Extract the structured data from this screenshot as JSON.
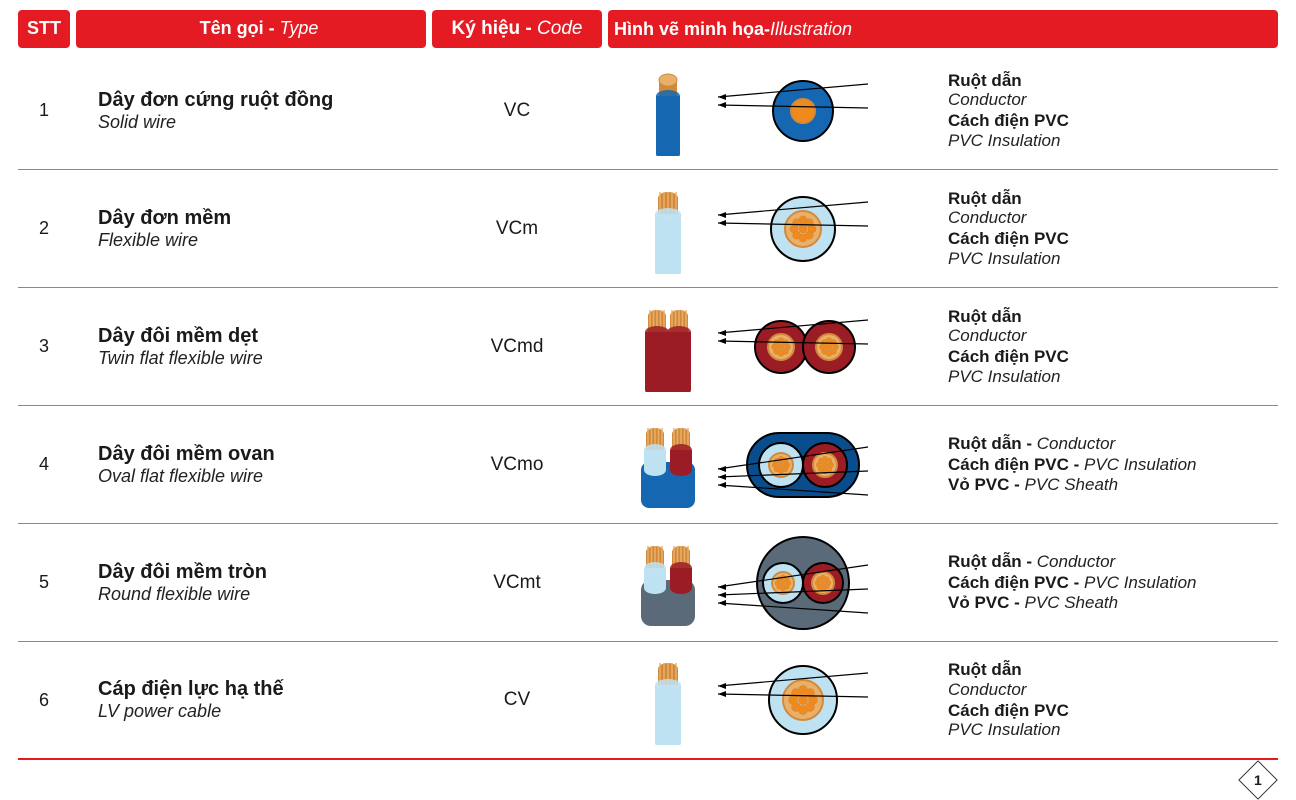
{
  "colors": {
    "header_bg": "#e41b23",
    "row_border": "#808080",
    "footer_border": "#e41b23",
    "text": "#1a1a1a",
    "copper": "#d28a3a",
    "copper_light": "#e8b06a",
    "blue": "#1667b2",
    "lightblue": "#bfe2f2",
    "red_ins": "#9c1c26",
    "maroon": "#6e2a2a",
    "darkblue_sheath": "#0a4d8c",
    "gray_sheath": "#5a6a78",
    "orange_dot": "#f08a1d",
    "black": "#000000",
    "white": "#ffffff"
  },
  "headers": {
    "stt": "STT",
    "type_vn": "Tên gọi",
    "type_en": "Type",
    "code_vn": "Ký hiệu",
    "code_en": "Code",
    "illus_vn": "Hình vẽ minh họa",
    "illus_en": "Illustration"
  },
  "label_text": {
    "conductor_vn": "Ruột dẫn",
    "conductor_en": "Conductor",
    "pvc_ins_vn": "Cách điện PVC",
    "pvc_ins_en": "PVC Insulation",
    "sheath_vn": "Vỏ PVC",
    "sheath_en": "PVC Sheath"
  },
  "rows": [
    {
      "n": "1",
      "name_vn": "Dây đơn cứng ruột đồng",
      "name_en": "Solid wire",
      "code": "VC",
      "wire_style": "single_solid_blue",
      "cross_style": "single_blue_solid",
      "labels": [
        "conductor",
        "pvc_ins"
      ]
    },
    {
      "n": "2",
      "name_vn": "Dây đơn mềm",
      "name_en": "Flexible wire",
      "code": "VCm",
      "wire_style": "single_strand_lightblue",
      "cross_style": "single_light_strand",
      "labels": [
        "conductor",
        "pvc_ins"
      ]
    },
    {
      "n": "3",
      "name_vn": "Dây đôi mềm dẹt",
      "name_en": "Twin flat flexible wire",
      "code": "VCmd",
      "wire_style": "twin_flat_red",
      "cross_style": "twin_red",
      "labels": [
        "conductor",
        "pvc_ins"
      ]
    },
    {
      "n": "4",
      "name_vn": "Dây đôi mềm ovan",
      "name_en": "Oval flat flexible wire",
      "code": "VCmo",
      "wire_style": "twin_oval_blue",
      "cross_style": "oval_blue",
      "labels": [
        "conductor",
        "pvc_ins",
        "sheath"
      ],
      "inline": true
    },
    {
      "n": "5",
      "name_vn": "Dây đôi mềm tròn",
      "name_en": "Round flexible wire",
      "code": "VCmt",
      "wire_style": "twin_round_gray",
      "cross_style": "round_gray",
      "labels": [
        "conductor",
        "pvc_ins",
        "sheath"
      ],
      "inline": true
    },
    {
      "n": "6",
      "name_vn": "Cáp điện lực hạ thế",
      "name_en": "LV power cable",
      "code": "CV",
      "wire_style": "single_strand_lightblue2",
      "cross_style": "single_light_multi",
      "labels": [
        "conductor",
        "pvc_ins"
      ]
    }
  ],
  "page_number": "1"
}
